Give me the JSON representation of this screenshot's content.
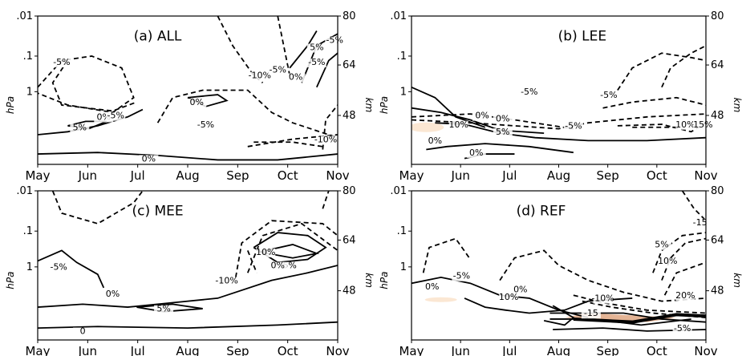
{
  "chart_data": [
    {
      "type": "contour",
      "title": "(a) ALL",
      "x_ticks": [
        "May",
        "Jun",
        "Jul",
        "Aug",
        "Sep",
        "Oct",
        "Nov"
      ],
      "y_left_ticks": [
        ".01",
        ".1",
        "1"
      ],
      "y_left_label": "hPa",
      "y_right_ticks": [
        "80",
        "64",
        "48"
      ],
      "y_right_label": "km",
      "contour_labels": [
        "-5%",
        "0%",
        "-5%",
        "5%",
        "0%",
        "-5%",
        "-10%",
        "-5%",
        "0%",
        "-5%",
        "5%",
        "0%",
        "-10%",
        "-5%"
      ],
      "shaded": false
    },
    {
      "type": "contour",
      "title": "(b) LEE",
      "x_ticks": [
        "May",
        "Jun",
        "Jul",
        "Aug",
        "Sep",
        "Oct",
        "Nov"
      ],
      "y_left_ticks": [
        ".01",
        ".1",
        "1"
      ],
      "y_left_label": "hPa",
      "y_right_ticks": [
        "80",
        "64",
        "48"
      ],
      "y_right_label": "km",
      "contour_labels": [
        "-5%",
        "0%",
        "-5%",
        "10%",
        "0%",
        "5%",
        "0%",
        "0%",
        "-5%",
        "10%",
        "15%"
      ],
      "shaded": true
    },
    {
      "type": "contour",
      "title": "(c) MEE",
      "x_ticks": [
        "May",
        "Jun",
        "Jul",
        "Aug",
        "Sep",
        "Oct",
        "Nov"
      ],
      "y_left_ticks": [
        ".01",
        ".1",
        "1"
      ],
      "y_left_label": "hPa",
      "y_right_ticks": [
        "80",
        "64",
        "48"
      ],
      "y_right_label": "km",
      "contour_labels": [
        "-5%",
        "0%",
        "5%",
        "0",
        "-10%",
        "10%",
        "5%",
        "0%"
      ],
      "shaded": false
    },
    {
      "type": "contour",
      "title": "(d) REF",
      "x_ticks": [
        "May",
        "Jun",
        "Jul",
        "Aug",
        "Sep",
        "Oct",
        "Nov"
      ],
      "y_left_ticks": [
        ".01",
        ".1",
        "1"
      ],
      "y_left_label": "hPa",
      "y_right_ticks": [
        "80",
        "64",
        "48"
      ],
      "y_right_label": "km",
      "contour_labels": [
        "0%",
        "-5%",
        "0%",
        "-10%",
        "-15",
        "5%",
        "10%",
        "20%",
        "-15",
        "-5%",
        "10%"
      ],
      "shaded": true
    }
  ],
  "colors": {
    "line": "#000000",
    "shade_light": "#fbe7d3",
    "shade_dark": "#c96a2b"
  }
}
